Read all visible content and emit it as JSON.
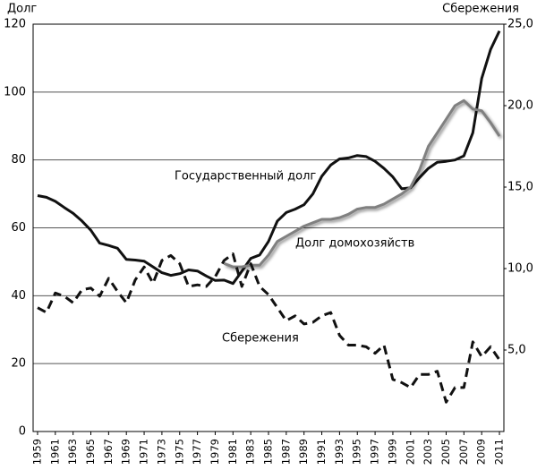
{
  "chart_data": {
    "type": "line",
    "y_label": "Долг",
    "y2_label": "Сбережения",
    "x": [
      1959,
      1960,
      1961,
      1962,
      1963,
      1964,
      1965,
      1966,
      1967,
      1968,
      1969,
      1970,
      1971,
      1972,
      1973,
      1974,
      1975,
      1976,
      1977,
      1978,
      1979,
      1980,
      1981,
      1982,
      1983,
      1984,
      1985,
      1986,
      1987,
      1988,
      1989,
      1990,
      1991,
      1992,
      1993,
      1994,
      1995,
      1996,
      1997,
      1998,
      1999,
      2000,
      2001,
      2002,
      2003,
      2004,
      2005,
      2006,
      2007,
      2008,
      2009,
      2010,
      2011
    ],
    "xlim": [
      1958.5,
      2011.5
    ],
    "xticks": [
      1959,
      1961,
      1963,
      1965,
      1967,
      1969,
      1971,
      1973,
      1975,
      1977,
      1979,
      1981,
      1983,
      1985,
      1987,
      1989,
      1991,
      1993,
      1995,
      1997,
      1999,
      2001,
      2003,
      2005,
      2007,
      2009,
      2011
    ],
    "ylim": [
      0,
      120
    ],
    "yticks": [
      0,
      20,
      40,
      60,
      80,
      100,
      120
    ],
    "y2lim": [
      0,
      25
    ],
    "y2ticks": [
      {
        "value": 5,
        "label": "5,0"
      },
      {
        "value": 10,
        "label": "10,0"
      },
      {
        "value": 15,
        "label": "15,0"
      },
      {
        "value": 20,
        "label": "20,0"
      },
      {
        "value": 25,
        "label": "25,0"
      }
    ],
    "grid": true,
    "series": [
      {
        "name": "Государственный долг",
        "color": "#111111",
        "style": "solid",
        "values": [
          69.5,
          69,
          67.8,
          66,
          64.3,
          62,
          59.3,
          55.5,
          54.8,
          54,
          50.7,
          50.5,
          50.2,
          48.5,
          46.8,
          46,
          46.5,
          47.6,
          47.3,
          45.8,
          44.5,
          44.6,
          43.6,
          47.2,
          51,
          52,
          56,
          62,
          64.5,
          65.5,
          66.8,
          70,
          75.2,
          78.5,
          80.3,
          80.6,
          81.3,
          81,
          79.6,
          77.5,
          75,
          71.5,
          71.8,
          74.8,
          77.5,
          79.3,
          79.6,
          80,
          81.2,
          88,
          104,
          112.5,
          118
        ]
      },
      {
        "name": "Долг домохозяйств",
        "color": "#808080",
        "style": "shadow",
        "values": [
          null,
          null,
          null,
          null,
          null,
          null,
          null,
          null,
          null,
          null,
          null,
          null,
          null,
          null,
          null,
          null,
          null,
          null,
          null,
          null,
          null,
          49.5,
          48.5,
          48.5,
          49,
          49,
          52,
          56,
          57.5,
          59,
          60.5,
          61.5,
          62.5,
          62.5,
          63,
          64,
          65.5,
          66,
          66,
          67,
          68.5,
          70,
          72,
          77,
          84,
          88,
          92,
          96,
          97.5,
          95,
          94.5,
          91,
          87
        ]
      },
      {
        "name": "Сбережения",
        "color": "#111111",
        "style": "dashed",
        "axis": "y2",
        "values": [
          7.6,
          7.3,
          8.5,
          8.3,
          7.9,
          8.7,
          8.8,
          8.3,
          9.4,
          8.6,
          7.9,
          9.3,
          10.1,
          9.1,
          10.5,
          10.8,
          10.3,
          8.9,
          9,
          8.9,
          9.5,
          10.5,
          10.9,
          8.9,
          10.3,
          8.9,
          8.4,
          7.6,
          6.8,
          7.1,
          6.6,
          6.7,
          7.1,
          7.3,
          5.9,
          5.3,
          5.3,
          5.2,
          4.8,
          5.3,
          3.2,
          3,
          2.7,
          3.5,
          3.5,
          3.7,
          1.8,
          2.7,
          2.7,
          5.5,
          4.6,
          5.2,
          4.4
        ]
      }
    ]
  }
}
